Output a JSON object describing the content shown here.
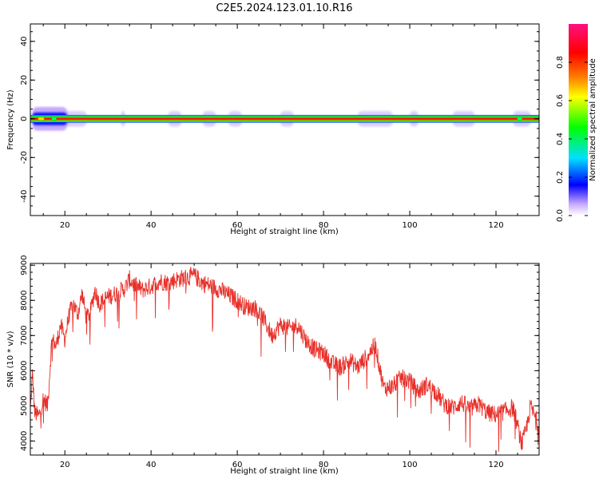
{
  "title": "C2E5.2024.123.01.10.R16",
  "chart_data": [
    {
      "type": "heatmap",
      "xlabel": "Height of straight line (km)",
      "ylabel": "Frequency (Hz)",
      "xlim": [
        12,
        130
      ],
      "ylim": [
        -50,
        49
      ],
      "xticks": [
        20,
        40,
        60,
        80,
        100,
        120
      ],
      "yticks": [
        -40,
        -20,
        0,
        20,
        40
      ],
      "colorbar": {
        "label": "Normalized spectral amplitude",
        "range": [
          0.0,
          1.0
        ],
        "ticks": [
          0.0,
          0.2,
          0.4,
          0.6,
          0.8
        ],
        "colormap": [
          "#ffffff",
          "#c8a8ff",
          "#0000ff",
          "#00e0ff",
          "#00ff00",
          "#ffff00",
          "#ff8000",
          "#ff0000",
          "#ff1080"
        ]
      },
      "band": {
        "center_freq": 0,
        "half_width": 2,
        "core_amplitude": 0.9,
        "noise_patches_km": [
          [
            13,
            25
          ],
          [
            33,
            34
          ],
          [
            44,
            47
          ],
          [
            52,
            55
          ],
          [
            58,
            61
          ],
          [
            70,
            73
          ],
          [
            88,
            96
          ],
          [
            100,
            102
          ],
          [
            110,
            115
          ],
          [
            124,
            128
          ]
        ],
        "strong_patch_km": [
          12.5,
          20.5
        ]
      }
    },
    {
      "type": "line",
      "xlabel": "Height of straight line (km)",
      "ylabel": "SNR (10 * v/v)",
      "xlim": [
        12,
        130
      ],
      "ylim": [
        3600,
        9050
      ],
      "xticks": [
        20,
        40,
        60,
        80,
        100,
        120
      ],
      "yticks": [
        4000,
        5000,
        6000,
        7000,
        8000,
        9000
      ],
      "series": [
        {
          "color": "#e8302a",
          "x": [
            12,
            12.5,
            13,
            14,
            15,
            16,
            17,
            18,
            19,
            20,
            21,
            22,
            23,
            24,
            25,
            26,
            27,
            28,
            29,
            30,
            32,
            34,
            35,
            36,
            38,
            40,
            42,
            44,
            46,
            48,
            50,
            52,
            54,
            56,
            58,
            60,
            62,
            64,
            66,
            68,
            70,
            72,
            74,
            76,
            78,
            80,
            82,
            84,
            86,
            88,
            90,
            92,
            93,
            94,
            96,
            98,
            100,
            102,
            104,
            106,
            108,
            110,
            112,
            114,
            116,
            118,
            120,
            122,
            124,
            126,
            127,
            128,
            130
          ],
          "values": [
            4900,
            5900,
            4800,
            4700,
            5200,
            5000,
            6900,
            6700,
            7300,
            6900,
            7600,
            7900,
            7600,
            8200,
            7500,
            7700,
            8300,
            7900,
            8000,
            8100,
            8200,
            8350,
            8600,
            8450,
            8300,
            8400,
            8550,
            8500,
            8600,
            8650,
            8700,
            8500,
            8400,
            8300,
            8150,
            8000,
            7800,
            7800,
            7500,
            7000,
            7300,
            7200,
            7300,
            6850,
            6600,
            6500,
            6200,
            6100,
            6300,
            6100,
            6400,
            6750,
            6100,
            5500,
            5550,
            5800,
            5700,
            5400,
            5600,
            5400,
            5050,
            4950,
            5100,
            4900,
            5050,
            4800,
            4750,
            4850,
            4950,
            3900,
            4300,
            5000,
            4400
          ]
        }
      ]
    }
  ]
}
